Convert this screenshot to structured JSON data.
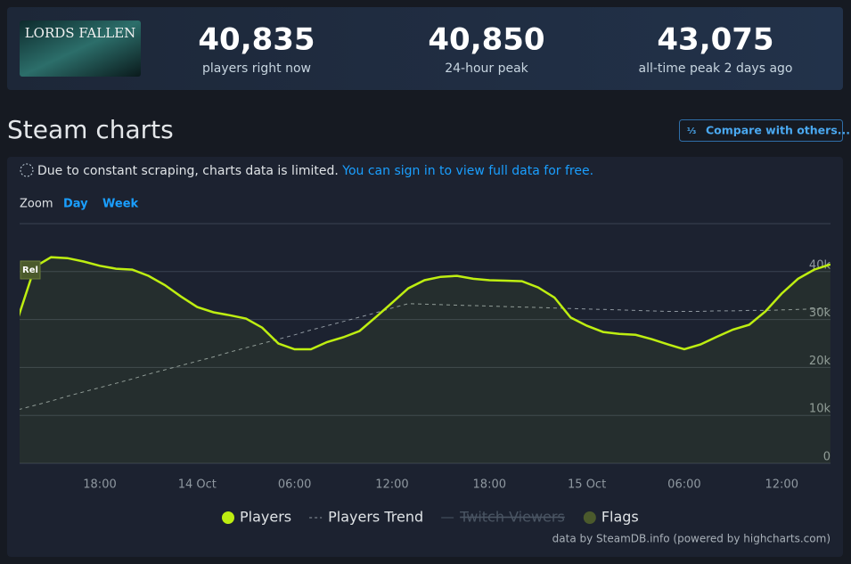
{
  "header": {
    "game_logo": "LORDS FALLEN",
    "stats": [
      {
        "value": "40,835",
        "label": "players right now"
      },
      {
        "value": "40,850",
        "label": "24-hour peak"
      },
      {
        "value": "43,075",
        "label": "all-time peak 2 days ago"
      }
    ]
  },
  "section_title": "Steam charts",
  "compare_button": "Compare with others...",
  "notice": {
    "text": "Due to constant scraping, charts data is limited.",
    "link": "You can sign in to view full data for free."
  },
  "zoom": {
    "label": "Zoom",
    "options": [
      "Day",
      "Week"
    ]
  },
  "credit": "data by SteamDB.info (powered by highcharts.com)",
  "chart_data": {
    "type": "line",
    "categories": [
      null,
      null,
      null,
      null,
      null,
      "18:00",
      null,
      null,
      null,
      null,
      null,
      "14 Oct",
      null,
      null,
      null,
      null,
      null,
      "06:00",
      null,
      null,
      null,
      null,
      null,
      "12:00",
      null,
      null,
      null,
      null,
      null,
      "18:00",
      null,
      null,
      null,
      null,
      null,
      "15 Oct",
      null,
      null,
      null,
      null,
      null,
      "06:00",
      null,
      null,
      null,
      null,
      null,
      "12:00",
      null,
      null,
      null
    ],
    "series": [
      {
        "name": "Players",
        "color": "#beee11",
        "values": [
          30700,
          41000,
          43000,
          42800,
          42100,
          41200,
          40600,
          40400,
          39100,
          37200,
          34800,
          32600,
          31500,
          30900,
          30200,
          28300,
          25000,
          23800,
          23800,
          25300,
          26300,
          27600,
          30500,
          33500,
          36500,
          38200,
          38900,
          39100,
          38500,
          38200,
          38100,
          38000,
          36700,
          34600,
          30400,
          28700,
          27400,
          27000,
          26800,
          25900,
          24800,
          23800,
          24800,
          26400,
          27900,
          28900,
          31700,
          35400,
          38500,
          40400,
          41500
        ]
      },
      {
        "name": "Players Trend",
        "color": "#8f98a0",
        "dashed": true,
        "values": [
          11200,
          12100,
          13000,
          14000,
          14900,
          15800,
          16700,
          17600,
          18600,
          19500,
          20400,
          21300,
          22200,
          23200,
          24100,
          25000,
          25900,
          26800,
          27800,
          28700,
          29600,
          30500,
          31400,
          32400,
          33300,
          33200,
          33100,
          33000,
          32900,
          32800,
          32700,
          32600,
          32500,
          32400,
          32300,
          32200,
          32100,
          32000,
          31900,
          31800,
          31700,
          31700,
          31700,
          31800,
          31800,
          31900,
          31900,
          32000,
          32100,
          32200,
          32300
        ]
      }
    ],
    "hidden_series": [
      {
        "name": "Twitch Viewers",
        "color": "#4a5563"
      }
    ],
    "flags": {
      "name": "Flags",
      "color": "#4b5a2c",
      "labels": [
        "Rel"
      ]
    },
    "ylim": [
      0,
      50000
    ],
    "yticks": [
      0,
      {
        "value": 10000,
        "label": "10k"
      },
      {
        "value": 20000,
        "label": "20k"
      },
      {
        "value": 30000,
        "label": "30k"
      },
      {
        "value": 40000,
        "label": "40k"
      }
    ],
    "grid": true
  }
}
